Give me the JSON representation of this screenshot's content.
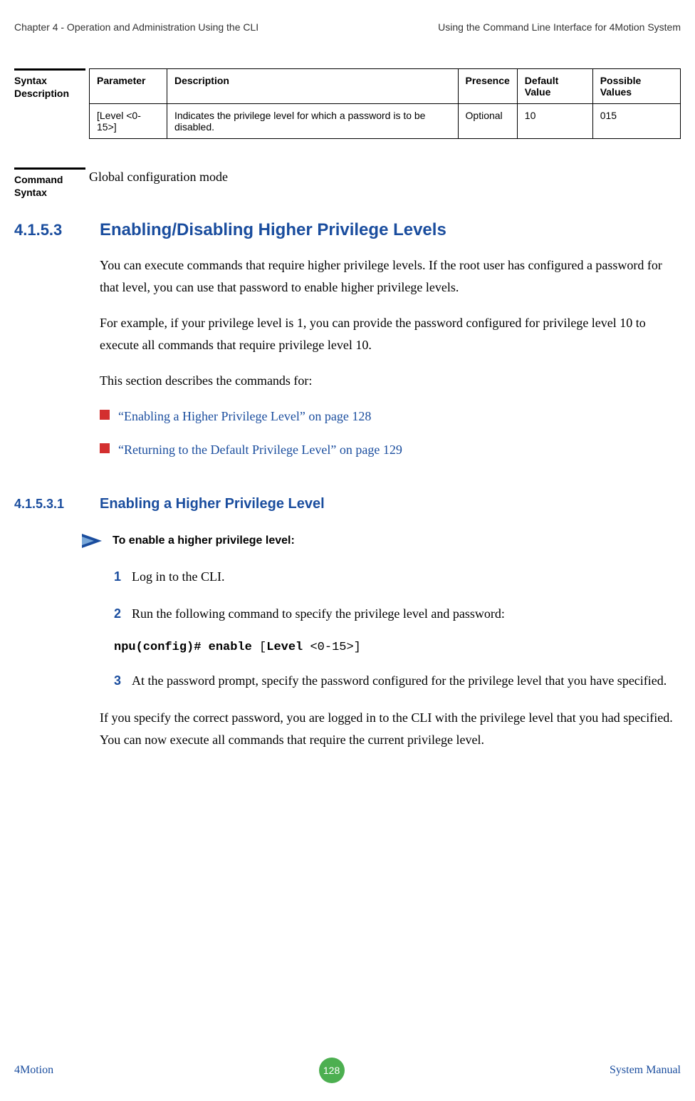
{
  "header": {
    "left": "Chapter 4 - Operation and Administration Using the CLI",
    "right": "Using the Command Line Interface for 4Motion System"
  },
  "syntax_desc": {
    "label_line1": "Syntax",
    "label_line2": "Description",
    "columns": {
      "parameter": "Parameter",
      "description": "Description",
      "presence": "Presence",
      "default_value": "Default Value",
      "possible_values": "Possible Values"
    },
    "row": {
      "parameter": "[Level <0-15>]",
      "description": "Indicates the privilege level for which a password is to be disabled.",
      "presence": "Optional",
      "default_value": "10",
      "possible_values": "015"
    }
  },
  "command_syntax": {
    "label_line1": "Command",
    "label_line2": "Syntax",
    "text": "Global configuration mode"
  },
  "section_4153": {
    "num": "4.1.5.3",
    "title": "Enabling/Disabling Higher Privilege Levels",
    "para1": "You can execute commands that require higher privilege levels. If the root user has configured a password for that level, you can use that password to enable higher privilege levels.",
    "para2": "For example, if your privilege level is 1, you can provide the password configured for privilege level 10 to execute all commands that require privilege level 10.",
    "para3": "This section describes the commands for:",
    "bullets": [
      "“Enabling a Higher Privilege Level” on page 128",
      "“Returning to the Default Privilege Level” on page 129"
    ]
  },
  "section_41531": {
    "num": "4.1.5.3.1",
    "title": "Enabling a Higher Privilege Level",
    "instruction": "To enable a higher privilege level:",
    "steps": {
      "s1": "Log in to the CLI.",
      "s2": "Run the following command to specify the privilege level and password:",
      "s3": "At the password prompt, specify the password configured for the privilege level that you have specified."
    },
    "command": {
      "part1": "npu(config)# enable ",
      "part2": "[",
      "part3": "Level ",
      "part4": "<0-15>]"
    },
    "closing": "If you specify the correct password, you are logged in to the CLI with the privilege level that you had specified. You can now execute all commands that require the current privilege level."
  },
  "footer": {
    "left": "4Motion",
    "page": "128",
    "right": "System Manual"
  }
}
